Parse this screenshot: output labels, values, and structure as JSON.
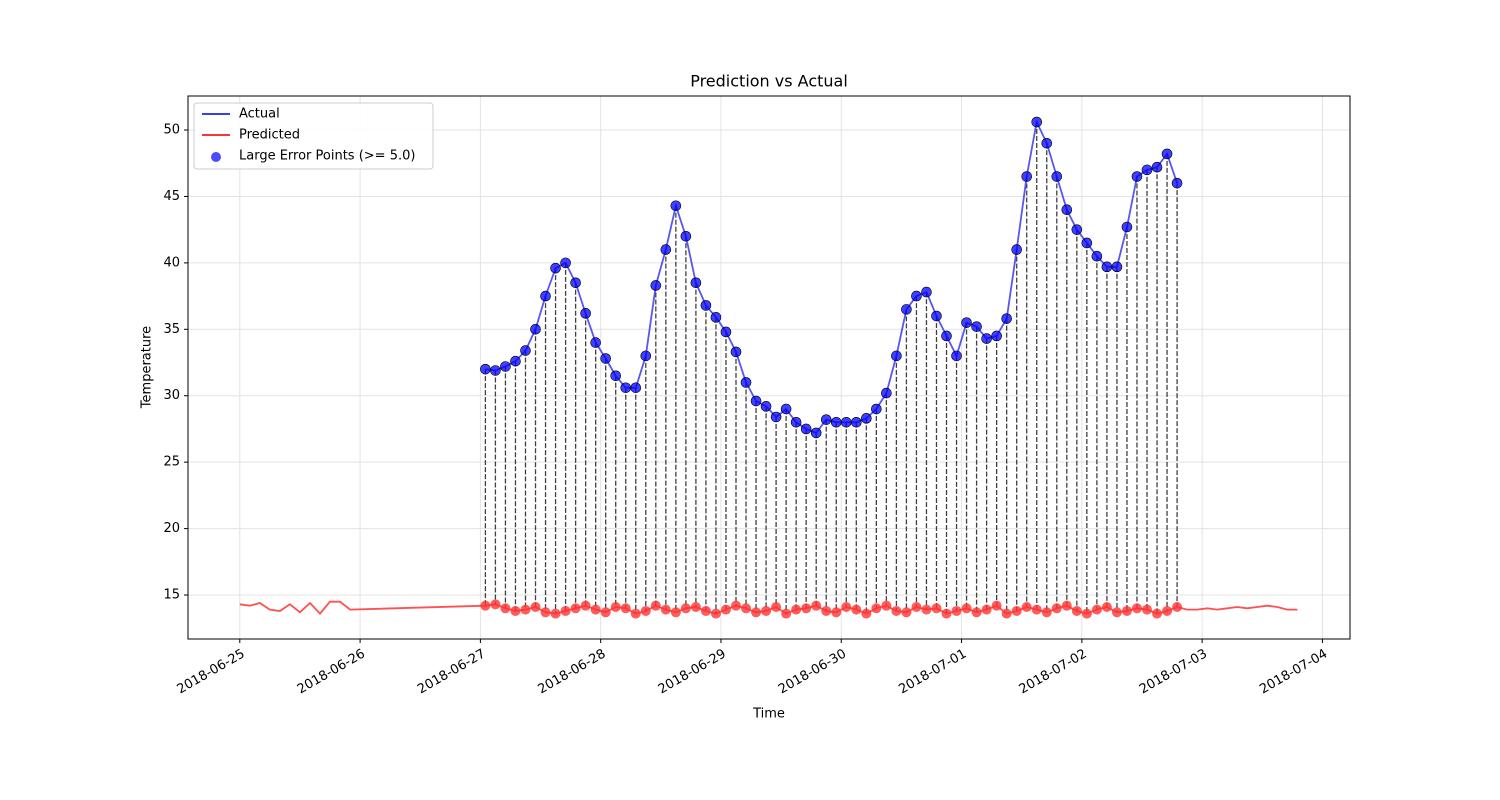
{
  "chart_data": {
    "type": "line",
    "title": "Prediction vs Actual",
    "xlabel": "Time",
    "ylabel": "Temperature",
    "xlim": [
      "2018-06-24 13:40",
      "2018-07-04 05:30"
    ],
    "xticks": [
      "2018-06-25",
      "2018-06-26",
      "2018-06-27",
      "2018-06-28",
      "2018-06-29",
      "2018-06-30",
      "2018-07-01",
      "2018-07-02",
      "2018-07-03",
      "2018-07-04"
    ],
    "ylim": [
      11.69,
      52.56
    ],
    "yticks": [
      15,
      20,
      25,
      30,
      35,
      40,
      45,
      50
    ],
    "grid": true,
    "legend": "upper left",
    "series": [
      {
        "name": "Actual",
        "color": "#3a3aee",
        "x": [
          "2018-06-27 01:00",
          "2018-06-27 03:00",
          "2018-06-27 05:00",
          "2018-06-27 07:00",
          "2018-06-27 09:00",
          "2018-06-27 11:00",
          "2018-06-27 13:00",
          "2018-06-27 15:00",
          "2018-06-27 17:00",
          "2018-06-27 19:00",
          "2018-06-27 21:00",
          "2018-06-27 23:00",
          "2018-06-28 01:00",
          "2018-06-28 03:00",
          "2018-06-28 05:00",
          "2018-06-28 07:00",
          "2018-06-28 09:00",
          "2018-06-28 11:00",
          "2018-06-28 13:00",
          "2018-06-28 15:00",
          "2018-06-28 17:00",
          "2018-06-28 19:00",
          "2018-06-28 21:00",
          "2018-06-28 23:00",
          "2018-06-29 01:00",
          "2018-06-29 03:00",
          "2018-06-29 05:00",
          "2018-06-29 07:00",
          "2018-06-29 09:00",
          "2018-06-29 11:00",
          "2018-06-29 13:00",
          "2018-06-29 15:00",
          "2018-06-29 17:00",
          "2018-06-29 19:00",
          "2018-06-29 21:00",
          "2018-06-29 23:00",
          "2018-06-30 01:00",
          "2018-06-30 03:00",
          "2018-06-30 05:00",
          "2018-06-30 07:00",
          "2018-06-30 09:00",
          "2018-06-30 11:00",
          "2018-06-30 13:00",
          "2018-06-30 15:00",
          "2018-06-30 17:00",
          "2018-06-30 19:00",
          "2018-06-30 21:00",
          "2018-06-30 23:00",
          "2018-07-01 01:00",
          "2018-07-01 03:00",
          "2018-07-01 05:00",
          "2018-07-01 07:00",
          "2018-07-01 09:00",
          "2018-07-01 11:00",
          "2018-07-01 13:00",
          "2018-07-01 15:00",
          "2018-07-01 17:00",
          "2018-07-01 19:00",
          "2018-07-01 21:00",
          "2018-07-01 23:00",
          "2018-07-02 01:00",
          "2018-07-02 03:00",
          "2018-07-02 05:00",
          "2018-07-02 07:00",
          "2018-07-02 09:00",
          "2018-07-02 11:00",
          "2018-07-02 13:00",
          "2018-07-02 15:00",
          "2018-07-02 17:00",
          "2018-07-02 19:00"
        ],
        "values": [
          32.0,
          31.9,
          32.2,
          32.6,
          33.4,
          35.0,
          37.5,
          39.6,
          40.0,
          38.5,
          36.2,
          34.0,
          32.8,
          31.5,
          30.6,
          30.6,
          33.0,
          38.3,
          41.0,
          44.3,
          42.0,
          38.5,
          36.8,
          35.9,
          34.8,
          33.3,
          31.0,
          29.6,
          29.2,
          28.4,
          29.0,
          28.0,
          27.5,
          27.2,
          28.2,
          28.0,
          28.0,
          28.0,
          28.3,
          29.0,
          30.2,
          33.0,
          36.5,
          37.5,
          37.8,
          36.0,
          34.5,
          33.0,
          35.5,
          35.2,
          34.3,
          34.5,
          35.8,
          41.0,
          46.5,
          50.6,
          49.0,
          46.5,
          44.0,
          42.5,
          41.5,
          40.5,
          39.7,
          39.7,
          42.7,
          46.5,
          47.0,
          47.2,
          48.2,
          46.0
        ]
      },
      {
        "name": "Predicted",
        "color": "#ff3333",
        "x": [
          "2018-06-25 00:00",
          "2018-06-25 02:00",
          "2018-06-25 04:00",
          "2018-06-25 06:00",
          "2018-06-25 08:00",
          "2018-06-25 10:00",
          "2018-06-25 12:00",
          "2018-06-25 14:00",
          "2018-06-25 16:00",
          "2018-06-25 18:00",
          "2018-06-25 20:00",
          "2018-06-25 22:00",
          "2018-06-27 01:00",
          "2018-06-27 03:00",
          "2018-06-27 05:00",
          "2018-06-27 07:00",
          "2018-06-27 09:00",
          "2018-06-27 11:00",
          "2018-06-27 13:00",
          "2018-06-27 15:00",
          "2018-06-27 17:00",
          "2018-06-27 19:00",
          "2018-06-27 21:00",
          "2018-06-27 23:00",
          "2018-06-28 01:00",
          "2018-06-28 03:00",
          "2018-06-28 05:00",
          "2018-06-28 07:00",
          "2018-06-28 09:00",
          "2018-06-28 11:00",
          "2018-06-28 13:00",
          "2018-06-28 15:00",
          "2018-06-28 17:00",
          "2018-06-28 19:00",
          "2018-06-28 21:00",
          "2018-06-28 23:00",
          "2018-06-29 01:00",
          "2018-06-29 03:00",
          "2018-06-29 05:00",
          "2018-06-29 07:00",
          "2018-06-29 09:00",
          "2018-06-29 11:00",
          "2018-06-29 13:00",
          "2018-06-29 15:00",
          "2018-06-29 17:00",
          "2018-06-29 19:00",
          "2018-06-29 21:00",
          "2018-06-29 23:00",
          "2018-06-30 01:00",
          "2018-06-30 03:00",
          "2018-06-30 05:00",
          "2018-06-30 07:00",
          "2018-06-30 09:00",
          "2018-06-30 11:00",
          "2018-06-30 13:00",
          "2018-06-30 15:00",
          "2018-06-30 17:00",
          "2018-06-30 19:00",
          "2018-06-30 21:00",
          "2018-06-30 23:00",
          "2018-07-01 01:00",
          "2018-07-01 03:00",
          "2018-07-01 05:00",
          "2018-07-01 07:00",
          "2018-07-01 09:00",
          "2018-07-01 11:00",
          "2018-07-01 13:00",
          "2018-07-01 15:00",
          "2018-07-01 17:00",
          "2018-07-01 19:00",
          "2018-07-01 21:00",
          "2018-07-01 23:00",
          "2018-07-02 01:00",
          "2018-07-02 03:00",
          "2018-07-02 05:00",
          "2018-07-02 07:00",
          "2018-07-02 09:00",
          "2018-07-02 11:00",
          "2018-07-02 13:00",
          "2018-07-02 15:00",
          "2018-07-02 17:00",
          "2018-07-02 19:00",
          "2018-07-02 21:00",
          "2018-07-02 23:00",
          "2018-07-03 01:00",
          "2018-07-03 03:00",
          "2018-07-03 05:00",
          "2018-07-03 07:00",
          "2018-07-03 09:00",
          "2018-07-03 11:00",
          "2018-07-03 13:00",
          "2018-07-03 15:00",
          "2018-07-03 17:00",
          "2018-07-03 19:00"
        ],
        "values": [
          14.3,
          14.2,
          14.4,
          13.9,
          13.8,
          14.3,
          13.7,
          14.4,
          13.6,
          14.5,
          14.5,
          13.9,
          14.2,
          14.3,
          14.0,
          13.8,
          13.9,
          14.1,
          13.7,
          13.6,
          13.8,
          14.0,
          14.2,
          13.9,
          13.7,
          14.1,
          14.0,
          13.6,
          13.8,
          14.2,
          13.9,
          13.7,
          14.0,
          14.1,
          13.8,
          13.6,
          13.9,
          14.2,
          14.0,
          13.7,
          13.8,
          14.1,
          13.6,
          13.9,
          14.0,
          14.2,
          13.8,
          13.7,
          14.1,
          13.9,
          13.6,
          14.0,
          14.2,
          13.8,
          13.7,
          14.1,
          13.9,
          14.0,
          13.6,
          13.8,
          14.0,
          13.7,
          13.9,
          14.2,
          13.6,
          13.8,
          14.1,
          13.9,
          13.7,
          14.0,
          14.2,
          13.8,
          13.6,
          13.9,
          14.1,
          13.7,
          13.8,
          14.0,
          13.9,
          13.6,
          13.8,
          14.1,
          13.9,
          13.9,
          14.0,
          13.9,
          14.0,
          14.1,
          14.0,
          14.1,
          14.2,
          14.1,
          13.9,
          13.9
        ]
      }
    ],
    "error_points": {
      "name": "Large Error Points (>= 5.0)",
      "color": "#0000ff",
      "threshold": 5.0
    }
  }
}
